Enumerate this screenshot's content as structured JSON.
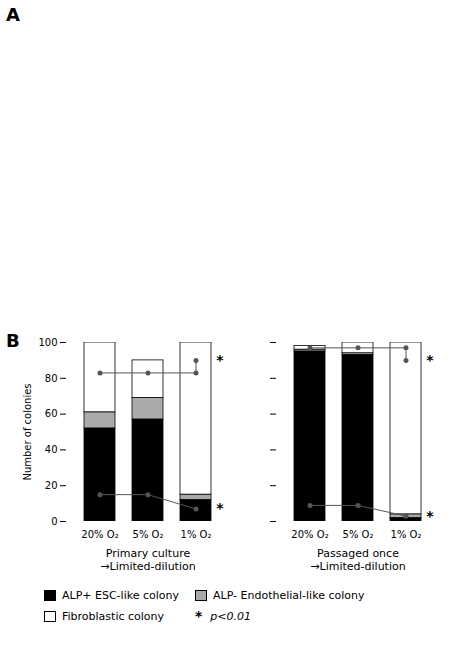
{
  "panel_labels": [
    "A",
    "B"
  ],
  "chart_data": [
    {
      "type": "bar",
      "stacked": true,
      "categories": [
        "20% O₂",
        "5% O₂",
        "1% O₂"
      ],
      "series": [
        {
          "name": "ALP+ ESC-like colony",
          "color": "#000000",
          "values": [
            52,
            57,
            12
          ]
        },
        {
          "name": "ALP- Endothelial-like colony",
          "color": "#aaaaaa",
          "values": [
            9,
            12,
            3
          ]
        },
        {
          "name": "Fibroblastic colony",
          "color": "#ffffff",
          "values": [
            39,
            21,
            85
          ]
        }
      ],
      "ylabel": "Number of colonies",
      "xlabel": "Primary culture\n→Limited-dilution",
      "ylim": [
        0,
        100
      ],
      "yticks": [
        0,
        20,
        40,
        60,
        80,
        100
      ],
      "legend": "bottom",
      "annotations": [
        {
          "text": "*"
        },
        {
          "text": "p<0.01"
        }
      ],
      "brackets": [
        {
          "x": [
            "20% O₂",
            "5% O₂",
            "1% O₂"
          ],
          "y": [
            15,
            15,
            7
          ],
          "color": "#555555",
          "marker": "o",
          "label": "*"
        },
        {
          "x": [
            "20% O₂",
            "5% O₂",
            "1% O₂",
            "1% O₂"
          ],
          "y": [
            83,
            83,
            83,
            90
          ],
          "color": "#555555",
          "marker": "o",
          "label": "*"
        }
      ]
    },
    {
      "type": "bar",
      "stacked": true,
      "categories": [
        "20% O₂",
        "5% O₂",
        "1% O₂"
      ],
      "series": [
        {
          "name": "ALP+ ESC-like colony",
          "color": "#000000",
          "values": [
            95,
            93,
            2
          ]
        },
        {
          "name": "ALP- Endothelial-like colony",
          "color": "#aaaaaa",
          "values": [
            1,
            1,
            2
          ]
        },
        {
          "name": "Fibroblastic colony",
          "color": "#ffffff",
          "values": [
            2,
            6,
            96
          ]
        }
      ],
      "xlabel": "Passaged once\n→Limited-dilution",
      "ylim": [
        0,
        100
      ],
      "yticks": [
        0,
        20,
        40,
        60,
        80,
        100
      ],
      "tick_labels": "x",
      "brackets": [
        {
          "x": [
            "20% O₂",
            "5% O₂",
            "1% O₂"
          ],
          "y": [
            9,
            9,
            3
          ],
          "color": "#555555",
          "marker": "o",
          "label": "*"
        },
        {
          "x": [
            "20% O₂",
            "5% O₂",
            "1% O₂",
            "1% O₂"
          ],
          "y": [
            97,
            97,
            97,
            90
          ],
          "color": "#555555",
          "marker": "o",
          "label": "*"
        }
      ]
    }
  ]
}
